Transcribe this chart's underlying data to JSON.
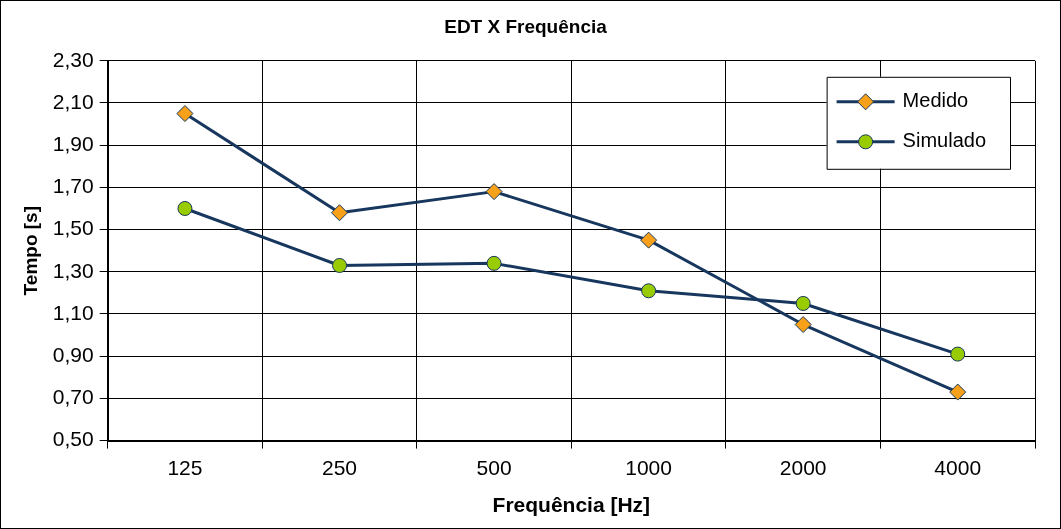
{
  "chart_data": {
    "type": "line",
    "title": "EDT X Frequência",
    "xlabel": "Frequência [Hz]",
    "ylabel": "Tempo [s]",
    "categories": [
      "125",
      "250",
      "500",
      "1000",
      "2000",
      "4000"
    ],
    "series": [
      {
        "name": "Medido",
        "color": "#f7a11a",
        "marker": "diamond",
        "values": [
          2.05,
          1.58,
          1.68,
          1.45,
          1.05,
          0.73
        ]
      },
      {
        "name": "Simulado",
        "color": "#99cc00",
        "marker": "circle",
        "values": [
          1.6,
          1.33,
          1.34,
          1.21,
          1.15,
          0.91
        ]
      }
    ],
    "ylim": [
      0.5,
      2.3
    ],
    "yticks": [
      {
        "value": 0.5,
        "label": "0,50"
      },
      {
        "value": 0.7,
        "label": "0,70"
      },
      {
        "value": 0.9,
        "label": "0,90"
      },
      {
        "value": 1.1,
        "label": "1,10"
      },
      {
        "value": 1.3,
        "label": "1,30"
      },
      {
        "value": 1.5,
        "label": "1,50"
      },
      {
        "value": 1.7,
        "label": "1,70"
      },
      {
        "value": 1.9,
        "label": "1,90"
      },
      {
        "value": 2.1,
        "label": "2,10"
      },
      {
        "value": 2.3,
        "label": "2,30"
      }
    ],
    "grid": true,
    "legend": "top right",
    "line_style": "solid"
  }
}
